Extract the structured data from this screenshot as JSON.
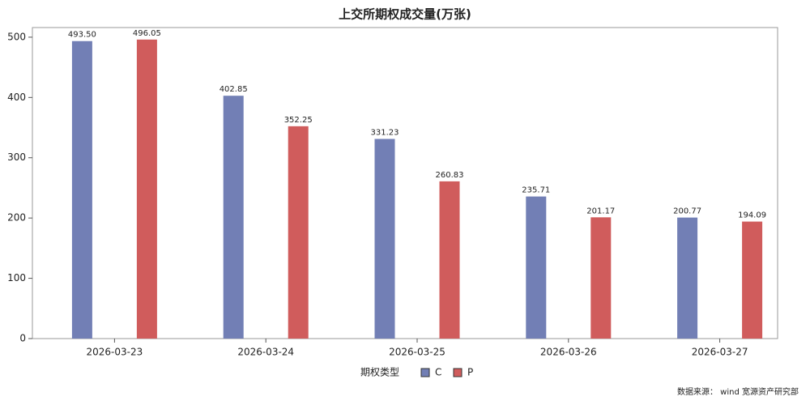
{
  "chart_data": {
    "type": "bar",
    "title": "上交所期权成交量(万张)",
    "categories": [
      "2026-03-23",
      "2026-03-24",
      "2026-03-25",
      "2026-03-26",
      "2026-03-27"
    ],
    "series": [
      {
        "name": "C",
        "color": "#727fb5",
        "values": [
          493.5,
          402.85,
          331.23,
          235.71,
          200.77
        ],
        "value_labels": [
          "493.50",
          "402.85",
          "331.23",
          "235.71",
          "200.77"
        ]
      },
      {
        "name": "P",
        "color": "#d05c5c",
        "values": [
          496.05,
          352.25,
          260.83,
          201.17,
          194.09
        ],
        "value_labels": [
          "496.05",
          "352.25",
          "260.83",
          "201.17",
          "194.09"
        ]
      }
    ],
    "ylim": [
      0,
      516
    ],
    "yticks": [
      0,
      100,
      200,
      300,
      400,
      500
    ],
    "legend_title": "期权类型",
    "source": "数据来源： wind  宽源资产研究部"
  }
}
